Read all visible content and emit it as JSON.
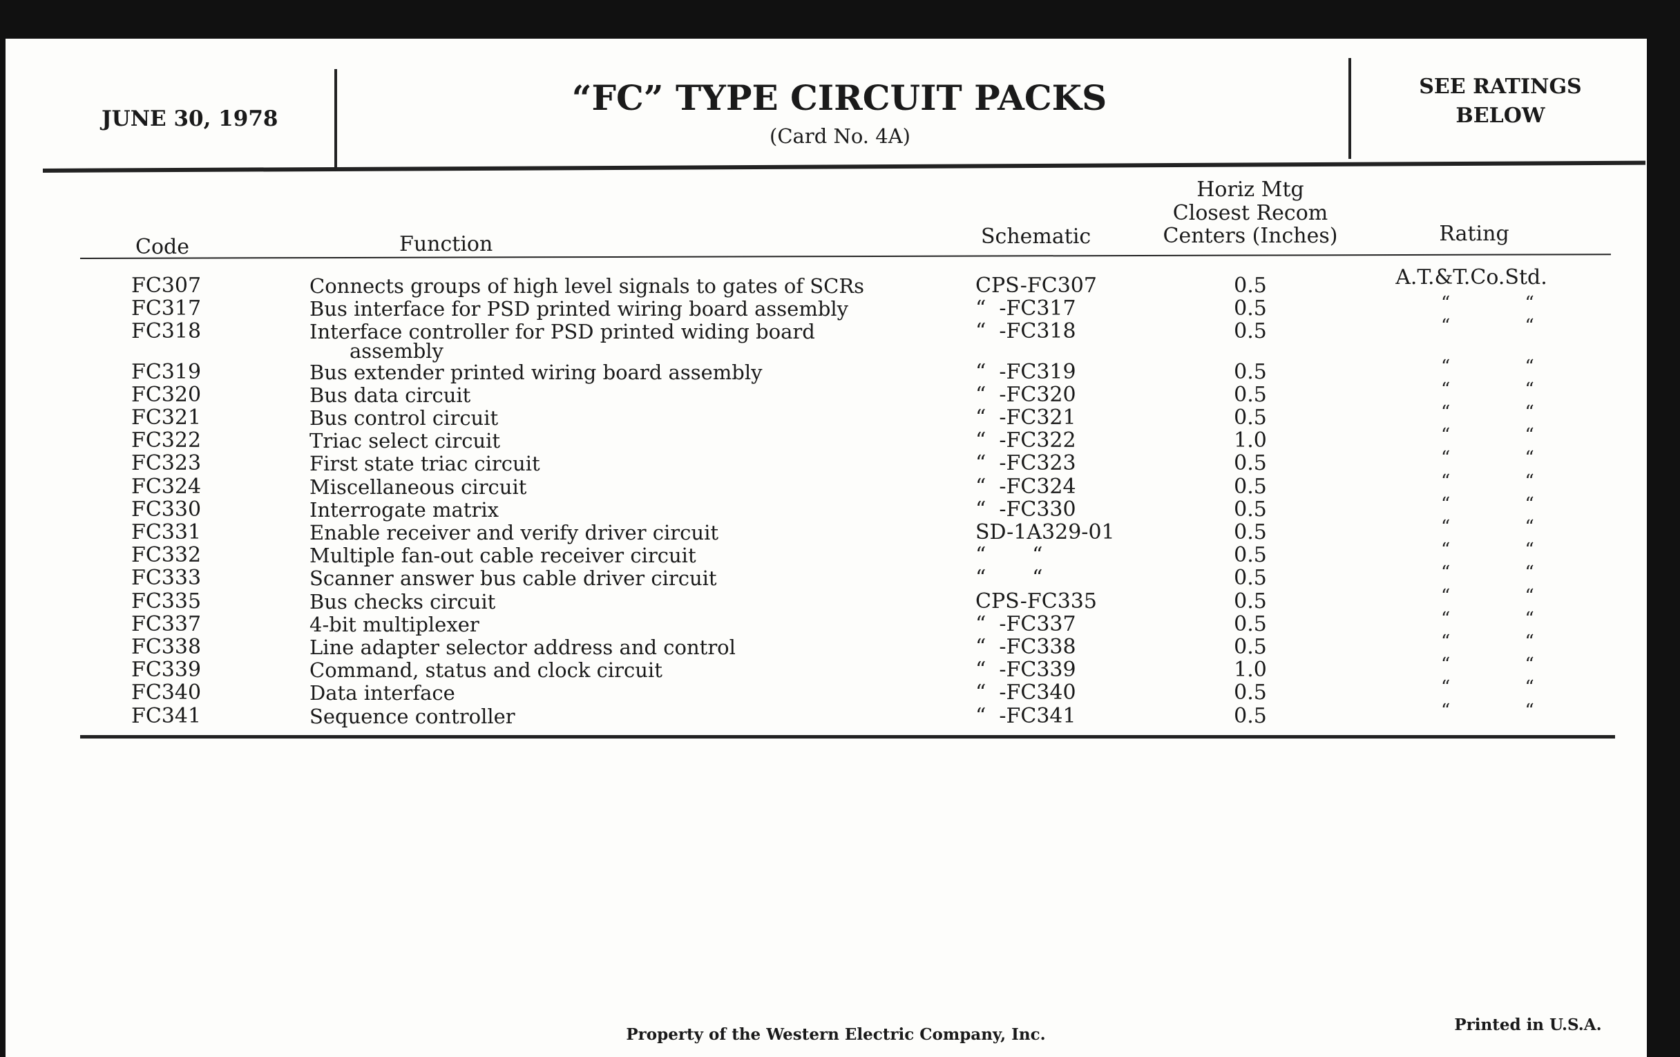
{
  "header": {
    "date": "JUNE 30, 1978",
    "title": "“FC” TYPE CIRCUIT PACKS",
    "subtitle": "(Card No. 4A)",
    "ratings_note_line1": "SEE RATINGS",
    "ratings_note_line2": "BELOW"
  },
  "columns": {
    "code": "Code",
    "function": "Function",
    "schematic": "Schematic",
    "centers_line1": "Horiz Mtg",
    "centers_line2": "Closest Recom",
    "centers_line3": "Centers (Inches)",
    "rating": "Rating"
  },
  "rows": [
    {
      "code": "FC307",
      "function": "Connects groups of high level signals to gates of SCRs",
      "schematic": "CPS-FC307",
      "centers": "0.5",
      "rating": "A.T.&T.Co.Std."
    },
    {
      "code": "FC317",
      "function": "Bus interface for PSD printed wiring board assembly",
      "schematic": "“  -FC317",
      "centers": "0.5",
      "rating": "“ “"
    },
    {
      "code": "FC318",
      "function": "Interface controller for PSD printed widing board",
      "function_cont": "assembly",
      "schematic": "“  -FC318",
      "centers": "0.5",
      "rating": "“ “"
    },
    {
      "code": "FC319",
      "function": "Bus extender printed wiring board assembly",
      "schematic": "“  -FC319",
      "centers": "0.5",
      "rating": "“ “"
    },
    {
      "code": "FC320",
      "function": "Bus data circuit",
      "schematic": "“  -FC320",
      "centers": "0.5",
      "rating": "“ “"
    },
    {
      "code": "FC321",
      "function": "Bus control circuit",
      "schematic": "“  -FC321",
      "centers": "0.5",
      "rating": "“ “"
    },
    {
      "code": "FC322",
      "function": "Triac select circuit",
      "schematic": "“  -FC322",
      "centers": "1.0",
      "rating": "“ “"
    },
    {
      "code": "FC323",
      "function": "First state triac circuit",
      "schematic": "“  -FC323",
      "centers": "0.5",
      "rating": "“ “"
    },
    {
      "code": "FC324",
      "function": "Miscellaneous circuit",
      "schematic": "“  -FC324",
      "centers": "0.5",
      "rating": "“ “"
    },
    {
      "code": "FC330",
      "function": "Interrogate matrix",
      "schematic": "“  -FC330",
      "centers": "0.5",
      "rating": "“ “"
    },
    {
      "code": "FC331",
      "function": "Enable receiver and verify driver circuit",
      "schematic": "SD-1A329-01",
      "centers": "0.5",
      "rating": "“ “"
    },
    {
      "code": "FC332",
      "function": "Multiple fan-out cable receiver circuit",
      "schematic": "“       “",
      "centers": "0.5",
      "rating": "“ “"
    },
    {
      "code": "FC333",
      "function": "Scanner answer bus cable driver circuit",
      "schematic": "“       “",
      "centers": "0.5",
      "rating": "“ “"
    },
    {
      "code": "FC335",
      "function": "Bus checks circuit",
      "schematic": "CPS-FC335",
      "centers": "0.5",
      "rating": "“ “"
    },
    {
      "code": "FC337",
      "function": "4-bit multiplexer",
      "schematic": "“  -FC337",
      "centers": "0.5",
      "rating": "“ “"
    },
    {
      "code": "FC338",
      "function": "Line adapter selector address and control",
      "schematic": "“  -FC338",
      "centers": "0.5",
      "rating": "“ “"
    },
    {
      "code": "FC339",
      "function": "Command, status and clock circuit",
      "schematic": "“  -FC339",
      "centers": "1.0",
      "rating": "“ “"
    },
    {
      "code": "FC340",
      "function": "Data interface",
      "schematic": "“  -FC340",
      "centers": "0.5",
      "rating": "“ “"
    },
    {
      "code": "FC341",
      "function": "Sequence controller",
      "schematic": "“  -FC341",
      "centers": "0.5",
      "rating": "“ “"
    }
  ],
  "footer": {
    "property": "Property of the Western Electric Company, Inc.",
    "printed": "Printed in U.S.A."
  }
}
